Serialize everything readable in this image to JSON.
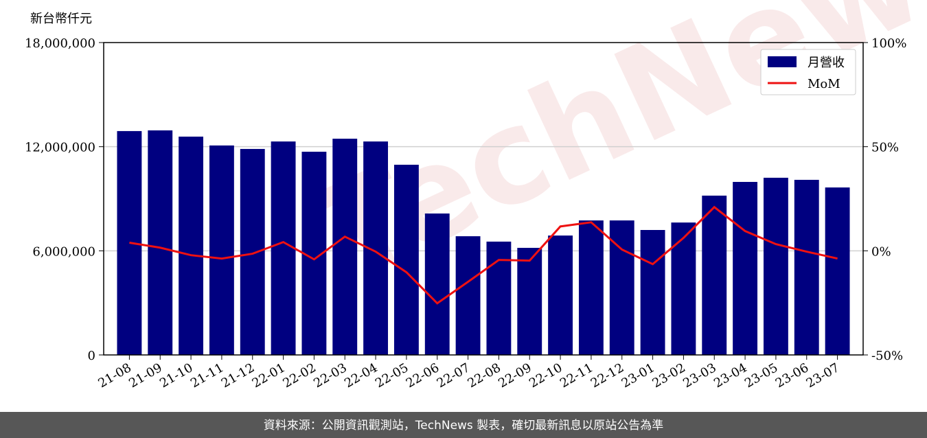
{
  "chart_data": {
    "type": "bar_line",
    "y_label": "新台幣仟元",
    "watermark": "TechNews",
    "footer": "資料來源：公開資訊觀測站，TechNews 製表，確切最新訊息以原站公告為準",
    "categories": [
      "21-08",
      "21-09",
      "21-10",
      "21-11",
      "21-12",
      "22-01",
      "22-02",
      "22-03",
      "22-04",
      "22-05",
      "22-06",
      "22-07",
      "22-08",
      "22-09",
      "22-10",
      "22-11",
      "22-12",
      "23-01",
      "23-02",
      "23-03",
      "23-04",
      "23-05",
      "23-06",
      "23-07"
    ],
    "series": [
      {
        "name": "月營收",
        "type": "bar",
        "color": "#000080",
        "values": [
          12900000,
          12940000,
          12580000,
          12070000,
          11870000,
          12300000,
          11710000,
          12460000,
          12300000,
          10960000,
          8150000,
          6840000,
          6530000,
          6170000,
          6880000,
          7750000,
          7750000,
          7200000,
          7630000,
          9180000,
          9970000,
          10210000,
          10090000,
          9650000
        ]
      },
      {
        "name": "MoM",
        "type": "line",
        "axis": "y2",
        "color": "#ee1111",
        "values": [
          3.9,
          1.5,
          -2.1,
          -3.7,
          -1.4,
          4.2,
          -4.1,
          6.8,
          -0.4,
          -10.3,
          -25.2,
          -14.9,
          -4.4,
          -4.7,
          11.7,
          13.7,
          0.6,
          -6.4,
          6.2,
          21.0,
          9.5,
          3.2,
          -0.4,
          -3.7
        ]
      }
    ],
    "ylim": [
      0,
      18000000
    ],
    "yticks": [
      0,
      {
        "value": 6000000,
        "label": "6,000,000"
      },
      {
        "value": 12000000,
        "label": "12,000,000"
      },
      {
        "value": 18000000,
        "label": "18,000,000"
      }
    ],
    "y2lim": [
      -50,
      100
    ],
    "y2ticks": [
      {
        "value": -50,
        "label": "-50%"
      },
      {
        "value": 0,
        "label": "0%"
      },
      {
        "value": 50,
        "label": "50%"
      },
      {
        "value": 100,
        "label": "100%"
      }
    ],
    "grid": true,
    "legend": "upper right"
  }
}
